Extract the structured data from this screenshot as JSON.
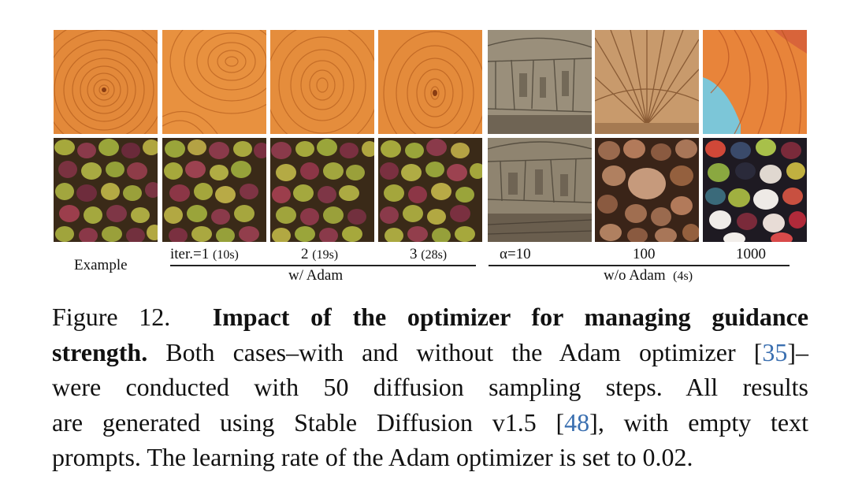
{
  "figure": {
    "rows": [
      "wood",
      "olives"
    ],
    "columns": [
      {
        "id": "example",
        "label": "Example",
        "time": ""
      },
      {
        "id": "adam-1",
        "label": "iter.=1",
        "time": "(10s)"
      },
      {
        "id": "adam-2",
        "label": "2",
        "time": "(19s)"
      },
      {
        "id": "adam-3",
        "label": "3",
        "time": "(28s)"
      },
      {
        "id": "noadam-10",
        "label": "α=10",
        "time": ""
      },
      {
        "id": "noadam-100",
        "label": "100",
        "time": ""
      },
      {
        "id": "noadam-1000",
        "label": "1000",
        "time": ""
      }
    ],
    "group_with_adam": "w/ Adam",
    "group_without_adam": "w/o Adam",
    "group_without_adam_time": "(4s)",
    "colors": {
      "wood": "#e08a3c",
      "wood_dark": "#b55a1c",
      "olive_green": "#9aa53a",
      "olive_red": "#8a3a4a",
      "sepia": "#8f8470",
      "rock": "#7a5a44",
      "cyan": "#7cc6d8"
    }
  },
  "caption": {
    "fig_label": "Figure 12.",
    "title_part1": "Impact of the optimizer for managing guidance",
    "title_part2": "strength.",
    "text1": "Both cases–with and without the Adam optimizer [",
    "cite1": "35",
    "text2": "]–",
    "line3": "were conducted with 50 diffusion sampling steps.  All results",
    "text4a": "are generated using Stable Diffusion v1.5 [",
    "cite2": "48",
    "text4b": "], with empty text",
    "line5": "prompts. The learning rate of the Adam optimizer is set to 0.02."
  }
}
